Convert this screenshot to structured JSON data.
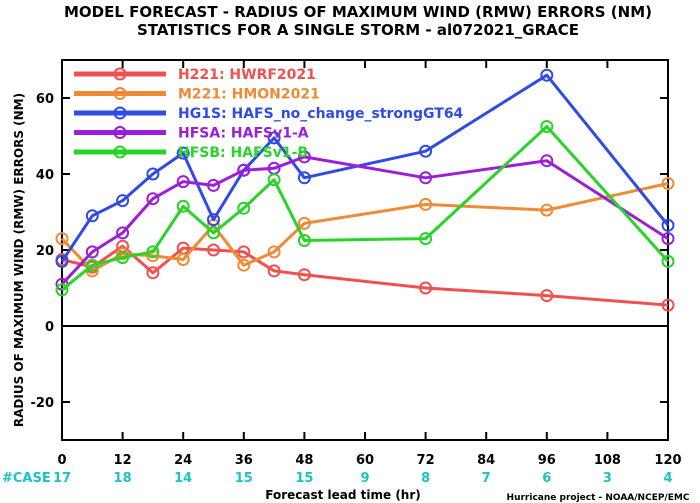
{
  "title_line1": "MODEL FORECAST - RADIUS OF MAXIMUM WIND (RMW) ERRORS (NM)",
  "title_line2": "STATISTICS FOR A SINGLE STORM - al072021_GRACE",
  "credit": "Hurricane project - NOAA/NCEP/EMC",
  "case_label": "#CASE",
  "chart_data": {
    "type": "line",
    "ylabel": "RADIUS OF MAXIMUM WIND (RMW) ERRORS (NM)",
    "xlabel": "Forecast lead time (hr)",
    "xlim": [
      0,
      120
    ],
    "ylim": [
      -30,
      70
    ],
    "xticks": [
      0,
      12,
      24,
      36,
      48,
      60,
      72,
      84,
      96,
      108,
      120
    ],
    "yticks": [
      0,
      20,
      40,
      60
    ],
    "ytick_labels": [
      "0",
      "20",
      "40",
      "60"
    ],
    "extra_ytick": {
      "value": -20,
      "label": "-20"
    },
    "case_x": [
      0,
      12,
      24,
      36,
      48,
      60,
      72,
      84,
      96,
      108,
      120
    ],
    "case_counts": [
      "17",
      "18",
      "14",
      "15",
      "15",
      "9",
      "8",
      "7",
      "6",
      "3",
      "4"
    ],
    "legend_position": "top-left",
    "series": [
      {
        "name": "H221:  HWRF2021",
        "color": "#f0504f",
        "x": [
          0,
          6,
          12,
          18,
          24,
          30,
          36,
          42,
          48,
          72,
          96,
          120
        ],
        "y": [
          17.5,
          15.5,
          21,
          14,
          20.5,
          20,
          19.5,
          14.5,
          13.5,
          10,
          8,
          5.5
        ]
      },
      {
        "name": "M221:  HMON2021",
        "color": "#f08a35",
        "x": [
          0,
          6,
          12,
          18,
          24,
          30,
          36,
          42,
          48,
          72,
          96,
          120
        ],
        "y": [
          23,
          14.5,
          19,
          18.5,
          17.5,
          26.5,
          16,
          19.5,
          27,
          32,
          30.5,
          37.5
        ]
      },
      {
        "name": "HG1S:  HAFS_no_change_strongGT64",
        "color": "#2f4ae6",
        "x": [
          0,
          6,
          12,
          18,
          24,
          30,
          36,
          42,
          48,
          72,
          96,
          120
        ],
        "y": [
          17,
          29,
          33,
          40,
          45.5,
          28,
          41,
          49.5,
          39,
          46,
          66,
          26.5
        ]
      },
      {
        "name": "HFSA:  HAFSv1-A",
        "color": "#9a1fd6",
        "x": [
          0,
          6,
          12,
          18,
          24,
          30,
          36,
          42,
          48,
          72,
          96,
          120
        ],
        "y": [
          11,
          19.5,
          24.5,
          33.5,
          38,
          37,
          41,
          41.5,
          44.5,
          39,
          43.5,
          23
        ]
      },
      {
        "name": "HFSB:  HAFSv1-B",
        "color": "#28d428",
        "x": [
          0,
          6,
          12,
          18,
          24,
          30,
          36,
          42,
          48,
          72,
          96,
          120
        ],
        "y": [
          9.5,
          16,
          18,
          19.5,
          31.5,
          24.5,
          31,
          38.5,
          22.5,
          23,
          52.5,
          17
        ]
      }
    ]
  }
}
